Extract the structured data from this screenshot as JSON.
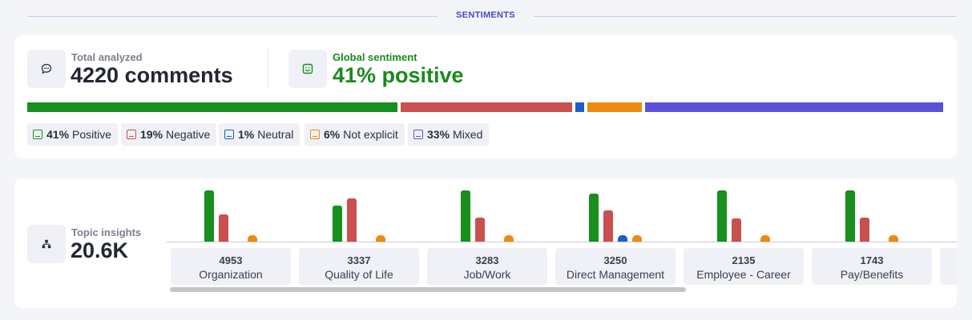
{
  "section": {
    "title": "SENTIMENTS"
  },
  "summary": {
    "total": {
      "label": "Total analyzed",
      "value": "4220 comments",
      "icon": "chat-bubble-icon"
    },
    "global": {
      "label": "Global sentiment",
      "value": "41% positive",
      "icon": "smiley-icon"
    }
  },
  "distribution": {
    "segments": [
      {
        "name": "Positive",
        "percent": 41,
        "color": "#17901d"
      },
      {
        "name": "Negative",
        "percent": 19,
        "color": "#c9504f"
      },
      {
        "name": "Neutral",
        "percent": 1,
        "color": "#1b5fc6"
      },
      {
        "name": "Not explicit",
        "percent": 6,
        "color": "#ee8a0f"
      },
      {
        "name": "Mixed",
        "percent": 33,
        "color": "#5a52d6"
      }
    ]
  },
  "legend": [
    {
      "pct": "41%",
      "label": "Positive",
      "color": "#17901d"
    },
    {
      "pct": "19%",
      "label": "Negative",
      "color": "#c9504f"
    },
    {
      "pct": "1%",
      "label": "Neutral",
      "color": "#1b5fc6"
    },
    {
      "pct": "6%",
      "label": "Not explicit",
      "color": "#ee8a0f"
    },
    {
      "pct": "33%",
      "label": "Mixed",
      "color": "#5a52d6"
    }
  ],
  "topics_summary": {
    "label": "Topic insights",
    "value": "20.6K",
    "icon": "hierarchy-icon"
  },
  "chart_data": {
    "type": "bar",
    "categories": [
      "Organization",
      "Quality of Life",
      "Job/Work",
      "Direct Management",
      "Employee - Career",
      "Pay/Benefits"
    ],
    "counts": [
      "4953",
      "3337",
      "3283",
      "3250",
      "2135",
      "1743"
    ],
    "series": [
      {
        "name": "Positive",
        "color": "#17901d",
        "values": [
          64,
          45,
          64,
          60,
          64,
          64
        ]
      },
      {
        "name": "Negative",
        "color": "#c9504f",
        "values": [
          34,
          54,
          30,
          39,
          29,
          30
        ]
      },
      {
        "name": "Neutral",
        "color": "#1b5fc6",
        "values": [
          0,
          0,
          0,
          8,
          0,
          0
        ]
      },
      {
        "name": "Not explicit",
        "color": "#ee8a0f",
        "values": [
          8,
          8,
          8,
          8,
          8,
          8
        ]
      }
    ],
    "ylim": [
      0,
      64
    ],
    "grid": false,
    "legend": "none"
  }
}
